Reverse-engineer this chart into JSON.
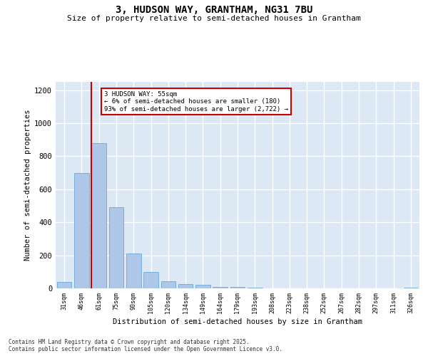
{
  "title1": "3, HUDSON WAY, GRANTHAM, NG31 7BU",
  "title2": "Size of property relative to semi-detached houses in Grantham",
  "xlabel": "Distribution of semi-detached houses by size in Grantham",
  "ylabel": "Number of semi-detached properties",
  "categories": [
    "31sqm",
    "46sqm",
    "61sqm",
    "75sqm",
    "90sqm",
    "105sqm",
    "120sqm",
    "134sqm",
    "149sqm",
    "164sqm",
    "179sqm",
    "193sqm",
    "208sqm",
    "223sqm",
    "238sqm",
    "252sqm",
    "267sqm",
    "282sqm",
    "297sqm",
    "311sqm",
    "326sqm"
  ],
  "values": [
    40,
    700,
    880,
    490,
    210,
    100,
    45,
    25,
    20,
    10,
    10,
    5,
    2,
    1,
    1,
    1,
    1,
    1,
    1,
    1,
    5
  ],
  "bar_color": "#aec6e8",
  "bar_edge_color": "#5a9fd4",
  "redline_bar_index": 2,
  "annotation_title": "3 HUDSON WAY: 55sqm",
  "annotation_line1": "← 6% of semi-detached houses are smaller (180)",
  "annotation_line2": "93% of semi-detached houses are larger (2,722) →",
  "annotation_box_color": "#ffffff",
  "annotation_box_edge": "#cc0000",
  "redline_color": "#cc0000",
  "ylim": [
    0,
    1250
  ],
  "yticks": [
    0,
    200,
    400,
    600,
    800,
    1000,
    1200
  ],
  "background_color": "#dde8f5",
  "grid_color": "#ffffff",
  "footer1": "Contains HM Land Registry data © Crown copyright and database right 2025.",
  "footer2": "Contains public sector information licensed under the Open Government Licence v3.0."
}
